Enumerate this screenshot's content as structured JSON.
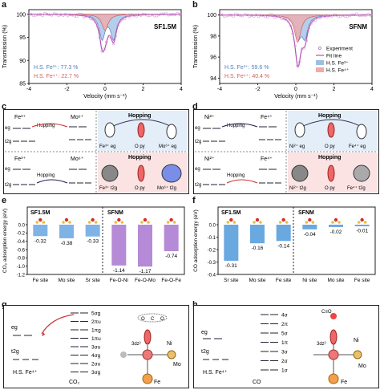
{
  "panels": {
    "a": {
      "letter": "a",
      "sample": "SF1.5M",
      "ylabel": "Transmission (%)",
      "xlabel": "Velocity (mm s⁻¹)",
      "yticks": [
        "100",
        "95",
        "90",
        "85"
      ],
      "xticks": [
        "-4",
        "-2",
        "0",
        "2",
        "4"
      ],
      "ann1": "H.S. Fe³⁺: 77.3 %",
      "ann2": "H.S. Fe⁴⁺: 22.7 %"
    },
    "b": {
      "letter": "b",
      "sample": "SFNM",
      "ylabel": "Transmission (%)",
      "xlabel": "Velocity (mm s⁻¹)",
      "yticks": [
        "100",
        "98",
        "96",
        "94"
      ],
      "xticks": [
        "-4",
        "-2",
        "0",
        "2",
        "4"
      ],
      "ann1": "H.S. Fe³⁺: 59.6 %",
      "ann2": "H.S. Fe⁴⁺: 40.4 %",
      "legend": [
        "Experiment",
        "Fit line",
        "H.S. Fe³⁺",
        "H.S. Fe⁴⁺"
      ]
    },
    "c": {
      "letter": "c",
      "top_left": "Fe³⁺",
      "top_right": "Mo⁶⁺",
      "hop": "Hopping",
      "eg": "eg",
      "t2g": "t2g",
      "bot_left": "Fe³⁺",
      "bot_right": "Mo⁶⁺",
      "lbl_top": [
        "Fe³⁺ eg",
        "O py",
        "Mo⁶⁺ eg"
      ],
      "lbl_bot": [
        "Fe³⁺ t2g",
        "O py",
        "Mo⁶⁺ t2g"
      ]
    },
    "d": {
      "letter": "d",
      "top_left": "Ni²⁺",
      "top_right": "Fe⁴⁺",
      "hop": "Hopping",
      "eg": "eg",
      "t2g": "t2g",
      "bot_left": "Ni²⁺",
      "bot_right": "Fe⁴⁺",
      "lbl_top": [
        "Ni²⁺ eg",
        "O py",
        "Fe⁴⁺ eg"
      ],
      "lbl_bot": [
        "Ni²⁺ t2g",
        "O py",
        "Fe⁴⁺ t2g"
      ]
    },
    "e": {
      "letter": "e",
      "ylabel": "CO₂ adsorption energy (eV)",
      "left_title": "SF1.5M",
      "right_title": "SFNM",
      "yticks": [
        "0.0",
        "-0.2",
        "-0.4",
        "-0.6",
        "-0.8",
        "-1.0",
        "-1.2"
      ]
    },
    "f": {
      "letter": "f",
      "ylabel": "CO adsorption energy (eV)",
      "left_title": "SF1.5M",
      "right_title": "SFNM",
      "yticks": [
        "0.0",
        "-0.1",
        "-0.2",
        "-0.3",
        "-0.4"
      ]
    },
    "g": {
      "letter": "g",
      "levels": [
        "5σg",
        "2πu",
        "1πg",
        "1πu",
        "3σu",
        "4σg",
        "2σu",
        "3σg"
      ],
      "eg": "eg",
      "t2g": "t2g",
      "site": "H.S. Fe⁴⁺",
      "mol": "CO₂",
      "atoms": [
        "O",
        "C",
        "O",
        "Ni",
        "Mo",
        "Fe",
        "3dz²"
      ]
    },
    "h": {
      "letter": "h",
      "levels": [
        "4σ",
        "2π",
        "5σ",
        "1π",
        "3σ",
        "2σ",
        "1σ"
      ],
      "eg": "eg",
      "t2g": "t2g",
      "site": "H.S. Fe⁴⁺",
      "mol": "CO",
      "atoms": [
        "C≡O",
        "Ni",
        "Mo",
        "Fe",
        "3dz²"
      ]
    }
  },
  "chart_data": [
    {
      "type": "line",
      "panel": "a",
      "title": "SF1.5M",
      "xlabel": "Velocity (mm s⁻¹)",
      "ylabel": "Transmission (%)",
      "xlim": [
        -4,
        4
      ],
      "ylim": [
        85,
        101
      ],
      "series": [
        {
          "name": "H.S. Fe³⁺",
          "center": 0.15,
          "splitting": 0.6,
          "depth": 10.5
        },
        {
          "name": "H.S. Fe⁴⁺",
          "center": 0.0,
          "splitting": 0.0,
          "depth": 3.5
        }
      ],
      "fractions": {
        "Fe3": 77.3,
        "Fe4": 22.7
      }
    },
    {
      "type": "line",
      "panel": "b",
      "title": "SFNM",
      "xlabel": "Velocity (mm s⁻¹)",
      "ylabel": "Transmission (%)",
      "xlim": [
        -4,
        4
      ],
      "ylim": [
        93.5,
        100.5
      ],
      "series": [
        {
          "name": "H.S. Fe³⁺",
          "center": 0.3,
          "splitting": 0.35,
          "depth": 4.0
        },
        {
          "name": "H.S. Fe⁴⁺",
          "center": 0.1,
          "splitting": 0.0,
          "depth": 2.6
        }
      ],
      "fractions": {
        "Fe3": 59.6,
        "Fe4": 40.4
      }
    },
    {
      "type": "bar",
      "panel": "e",
      "ylabel": "CO₂ adsorption energy (eV)",
      "ylim": [
        -1.3,
        0.0
      ],
      "categories": [
        "Fe site",
        "Mo site",
        "Sr site",
        "Fe-O-Ni",
        "Fe-O-Mo",
        "Fe-O-Fe"
      ],
      "values": [
        -0.32,
        -0.38,
        -0.33,
        -1.14,
        -1.17,
        -0.74
      ],
      "groups": [
        "SF1.5M",
        "SF1.5M",
        "SF1.5M",
        "SFNM",
        "SFNM",
        "SFNM"
      ]
    },
    {
      "type": "bar",
      "panel": "f",
      "ylabel": "CO adsorption energy (eV)",
      "ylim": [
        -0.4,
        0.0
      ],
      "categories": [
        "Sr site",
        "Mo site",
        "Fe site",
        "Ni site",
        "Mo site",
        "Fe site"
      ],
      "values": [
        -0.31,
        -0.16,
        -0.14,
        -0.04,
        -0.02,
        -0.01
      ],
      "groups": [
        "SF1.5M",
        "SF1.5M",
        "SF1.5M",
        "SFNM",
        "SFNM",
        "SFNM"
      ]
    }
  ]
}
